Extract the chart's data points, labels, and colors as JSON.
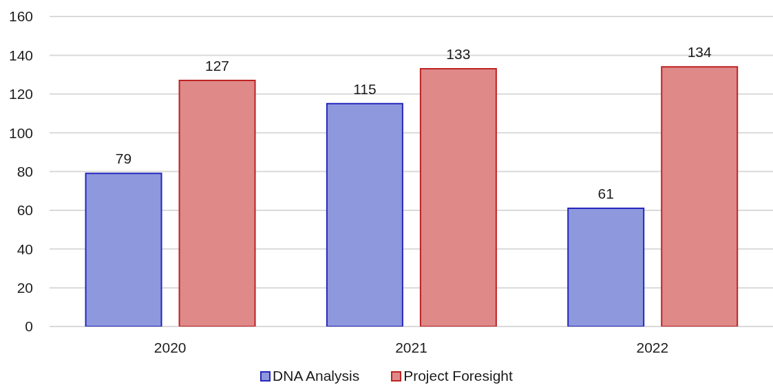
{
  "chart_data": {
    "type": "bar",
    "categories": [
      "2020",
      "2021",
      "2022"
    ],
    "series": [
      {
        "name": "DNA Analysis",
        "color": "#8e98dd",
        "values": [
          79,
          115,
          61
        ]
      },
      {
        "name": "Project Foresight",
        "color": "#df8989",
        "values": [
          127,
          133,
          134
        ]
      }
    ],
    "ylim": [
      0,
      160
    ],
    "yticks": [
      0,
      20,
      40,
      60,
      80,
      100,
      120,
      140,
      160
    ],
    "grid": "y",
    "legend": "bottom",
    "data_labels": true
  }
}
